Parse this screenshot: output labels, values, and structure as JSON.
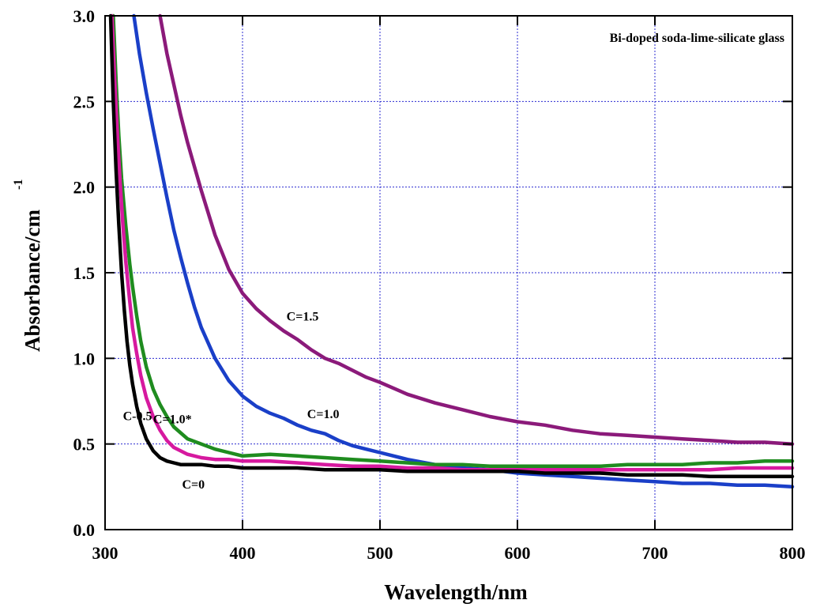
{
  "chart_data": {
    "type": "line",
    "title": "",
    "annotation": "Bi-doped soda-lime-silicate glass",
    "xlabel": "Wavelength/nm",
    "ylabel": "Absorbance/cm",
    "ylabel_superscript": "-1",
    "xlim": [
      300,
      800
    ],
    "ylim": [
      0.0,
      3.0
    ],
    "xticks": [
      300,
      400,
      500,
      600,
      700,
      800
    ],
    "xtick_labels": [
      "300",
      "400",
      "500",
      "600",
      "700",
      "800"
    ],
    "yticks": [
      0.0,
      0.5,
      1.0,
      1.5,
      2.0,
      2.5,
      3.0
    ],
    "ytick_labels": [
      "0.0",
      "0.5",
      "1.0",
      "1.5",
      "2.0",
      "2.5",
      "3.0"
    ],
    "grid": true,
    "series": [
      {
        "label": "C=1.5",
        "color": "#8b1a7a",
        "x": [
          340,
          345,
          350,
          355,
          360,
          365,
          370,
          380,
          390,
          400,
          410,
          420,
          430,
          440,
          450,
          460,
          470,
          480,
          490,
          500,
          520,
          540,
          560,
          580,
          600,
          620,
          640,
          660,
          680,
          700,
          720,
          740,
          760,
          780,
          800
        ],
        "y": [
          3.0,
          2.78,
          2.6,
          2.42,
          2.26,
          2.12,
          1.98,
          1.72,
          1.52,
          1.38,
          1.29,
          1.22,
          1.16,
          1.11,
          1.05,
          1.0,
          0.97,
          0.93,
          0.89,
          0.86,
          0.79,
          0.74,
          0.7,
          0.66,
          0.63,
          0.61,
          0.58,
          0.56,
          0.55,
          0.54,
          0.53,
          0.52,
          0.51,
          0.51,
          0.5
        ]
      },
      {
        "label": "C=1.0",
        "color": "#1a3fc8",
        "x": [
          321,
          325,
          330,
          335,
          340,
          345,
          350,
          355,
          360,
          365,
          370,
          380,
          390,
          400,
          410,
          420,
          430,
          440,
          450,
          460,
          470,
          480,
          490,
          500,
          520,
          540,
          560,
          580,
          600,
          620,
          640,
          660,
          680,
          700,
          720,
          740,
          760,
          780,
          800
        ],
        "y": [
          3.0,
          2.78,
          2.55,
          2.34,
          2.14,
          1.94,
          1.75,
          1.59,
          1.44,
          1.3,
          1.18,
          1.0,
          0.87,
          0.78,
          0.72,
          0.68,
          0.65,
          0.61,
          0.58,
          0.56,
          0.52,
          0.49,
          0.47,
          0.45,
          0.41,
          0.38,
          0.36,
          0.35,
          0.33,
          0.32,
          0.31,
          0.3,
          0.29,
          0.28,
          0.27,
          0.27,
          0.26,
          0.26,
          0.25
        ]
      },
      {
        "label": "C=1.0*",
        "color": "#1f8c1f",
        "x": [
          306,
          308,
          310,
          312,
          315,
          318,
          320,
          323,
          326,
          330,
          335,
          340,
          345,
          350,
          360,
          370,
          380,
          390,
          400,
          420,
          440,
          460,
          480,
          500,
          520,
          540,
          560,
          580,
          600,
          620,
          640,
          660,
          680,
          700,
          720,
          740,
          760,
          780,
          800
        ],
        "y": [
          3.0,
          2.62,
          2.3,
          2.05,
          1.78,
          1.55,
          1.42,
          1.25,
          1.1,
          0.95,
          0.82,
          0.73,
          0.66,
          0.6,
          0.53,
          0.5,
          0.47,
          0.45,
          0.43,
          0.44,
          0.43,
          0.42,
          0.41,
          0.4,
          0.39,
          0.38,
          0.38,
          0.37,
          0.37,
          0.37,
          0.37,
          0.37,
          0.38,
          0.38,
          0.38,
          0.39,
          0.39,
          0.4,
          0.4
        ]
      },
      {
        "label": "C-0.5",
        "color": "#d6199f",
        "x": [
          305,
          307,
          309,
          311,
          313,
          315,
          318,
          320,
          323,
          326,
          330,
          335,
          340,
          345,
          350,
          360,
          370,
          380,
          390,
          400,
          420,
          440,
          460,
          480,
          500,
          520,
          540,
          560,
          580,
          600,
          620,
          640,
          660,
          680,
          700,
          720,
          740,
          760,
          780,
          800
        ],
        "y": [
          3.0,
          2.62,
          2.3,
          2.02,
          1.78,
          1.57,
          1.33,
          1.18,
          1.03,
          0.9,
          0.77,
          0.66,
          0.58,
          0.52,
          0.48,
          0.44,
          0.42,
          0.41,
          0.41,
          0.4,
          0.4,
          0.39,
          0.38,
          0.37,
          0.37,
          0.36,
          0.36,
          0.35,
          0.35,
          0.35,
          0.35,
          0.35,
          0.35,
          0.35,
          0.35,
          0.35,
          0.35,
          0.36,
          0.36,
          0.36
        ]
      },
      {
        "label": "C=0",
        "color": "#000000",
        "x": [
          304,
          306,
          308,
          310,
          312,
          314,
          316,
          318,
          320,
          323,
          326,
          330,
          335,
          340,
          345,
          350,
          355,
          360,
          370,
          380,
          390,
          400,
          420,
          440,
          460,
          480,
          500,
          520,
          540,
          560,
          580,
          600,
          620,
          640,
          660,
          680,
          700,
          720,
          740,
          760,
          780,
          800
        ],
        "y": [
          3.0,
          2.5,
          2.1,
          1.78,
          1.5,
          1.28,
          1.1,
          0.96,
          0.85,
          0.72,
          0.62,
          0.53,
          0.46,
          0.42,
          0.4,
          0.39,
          0.38,
          0.38,
          0.38,
          0.37,
          0.37,
          0.36,
          0.36,
          0.36,
          0.35,
          0.35,
          0.35,
          0.34,
          0.34,
          0.34,
          0.34,
          0.34,
          0.33,
          0.33,
          0.33,
          0.32,
          0.32,
          0.32,
          0.31,
          0.31,
          0.31,
          0.31
        ]
      }
    ],
    "series_label_positions": [
      {
        "label": "C=1.5",
        "x": 432,
        "y": 1.22
      },
      {
        "label": "C=1.0",
        "x": 447,
        "y": 0.65
      },
      {
        "label": "C=1.0*",
        "x": 335,
        "y": 0.62
      },
      {
        "label": "C-0.5",
        "x": 313,
        "y": 0.64
      },
      {
        "label": "C=0",
        "x": 356,
        "y": 0.24
      }
    ]
  }
}
